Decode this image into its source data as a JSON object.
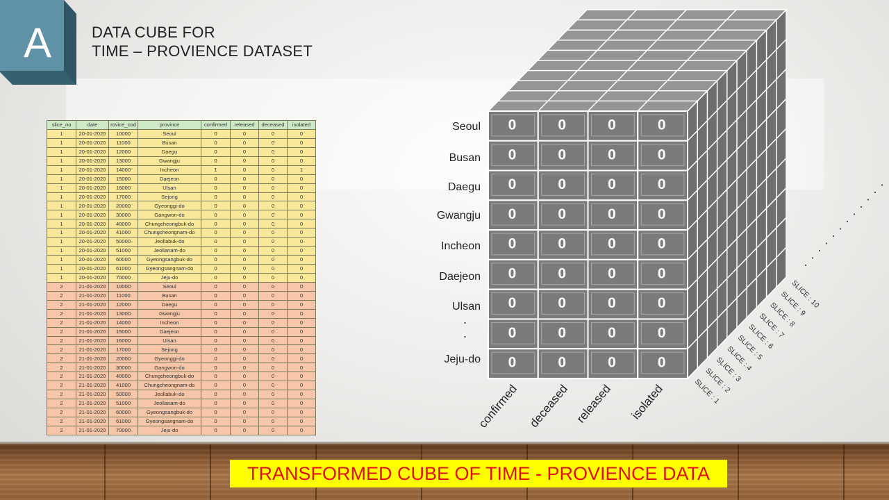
{
  "badge": {
    "letter": "A"
  },
  "title": {
    "line1": "DATA CUBE FOR",
    "line2": "TIME – PROVIENCE DATASET"
  },
  "banner": "TRANSFORMED  CUBE OF TIME - PROVIENCE DATA",
  "table": {
    "headers": [
      "slice_no",
      "date",
      "rovice_cod",
      "province",
      "confirmed",
      "released",
      "deceased",
      "isolated"
    ],
    "rows": [
      [
        "1",
        "20-01-2020",
        "10000",
        "Seoul",
        "0",
        "0",
        "0",
        "0"
      ],
      [
        "1",
        "20-01-2020",
        "11000",
        "Busan",
        "0",
        "0",
        "0",
        "0"
      ],
      [
        "1",
        "20-01-2020",
        "12000",
        "Daegu",
        "0",
        "0",
        "0",
        "0"
      ],
      [
        "1",
        "20-01-2020",
        "13000",
        "Gwangju",
        "0",
        "0",
        "0",
        "0"
      ],
      [
        "1",
        "20-01-2020",
        "14000",
        "Incheon",
        "1",
        "0",
        "0",
        "1"
      ],
      [
        "1",
        "20-01-2020",
        "15000",
        "Daejeon",
        "0",
        "0",
        "0",
        "0"
      ],
      [
        "1",
        "20-01-2020",
        "16000",
        "Ulsan",
        "0",
        "0",
        "0",
        "0"
      ],
      [
        "1",
        "20-01-2020",
        "17000",
        "Sejong",
        "0",
        "0",
        "0",
        "0"
      ],
      [
        "1",
        "20-01-2020",
        "20000",
        "Gyeonggi-do",
        "0",
        "0",
        "0",
        "0"
      ],
      [
        "1",
        "20-01-2020",
        "30000",
        "Gangwon-do",
        "0",
        "0",
        "0",
        "0"
      ],
      [
        "1",
        "20-01-2020",
        "40000",
        "Chungcheongbuk-do",
        "0",
        "0",
        "0",
        "0"
      ],
      [
        "1",
        "20-01-2020",
        "41000",
        "Chungcheongnam-do",
        "0",
        "0",
        "0",
        "0"
      ],
      [
        "1",
        "20-01-2020",
        "50000",
        "Jeollabuk-do",
        "0",
        "0",
        "0",
        "0"
      ],
      [
        "1",
        "20-01-2020",
        "51000",
        "Jeollanam-do",
        "0",
        "0",
        "0",
        "0"
      ],
      [
        "1",
        "20-01-2020",
        "60000",
        "Gyeongsangbuk-do",
        "0",
        "0",
        "0",
        "0"
      ],
      [
        "1",
        "20-01-2020",
        "61000",
        "Gyeongsangnam-do",
        "0",
        "0",
        "0",
        "0"
      ],
      [
        "1",
        "20-01-2020",
        "70000",
        "Jeju-do",
        "0",
        "0",
        "0",
        "0"
      ],
      [
        "2",
        "21-01-2020",
        "10000",
        "Seoul",
        "0",
        "0",
        "0",
        "0"
      ],
      [
        "2",
        "21-01-2020",
        "11000",
        "Busan",
        "0",
        "0",
        "0",
        "0"
      ],
      [
        "2",
        "21-01-2020",
        "12000",
        "Daegu",
        "0",
        "0",
        "0",
        "0"
      ],
      [
        "2",
        "21-01-2020",
        "13000",
        "Gwangju",
        "0",
        "0",
        "0",
        "0"
      ],
      [
        "2",
        "21-01-2020",
        "14000",
        "Incheon",
        "0",
        "0",
        "0",
        "0"
      ],
      [
        "2",
        "21-01-2020",
        "15000",
        "Daejeon",
        "0",
        "0",
        "0",
        "0"
      ],
      [
        "2",
        "21-01-2020",
        "16000",
        "Ulsan",
        "0",
        "0",
        "0",
        "0"
      ],
      [
        "2",
        "21-01-2020",
        "17000",
        "Sejong",
        "0",
        "0",
        "0",
        "0"
      ],
      [
        "2",
        "21-01-2020",
        "20000",
        "Gyeonggi-do",
        "0",
        "0",
        "0",
        "0"
      ],
      [
        "2",
        "21-01-2020",
        "30000",
        "Gangwon-do",
        "0",
        "0",
        "0",
        "0"
      ],
      [
        "2",
        "21-01-2020",
        "40000",
        "Chungcheongbuk-do",
        "0",
        "0",
        "0",
        "0"
      ],
      [
        "2",
        "21-01-2020",
        "41000",
        "Chungcheongnam-do",
        "0",
        "0",
        "0",
        "0"
      ],
      [
        "2",
        "21-01-2020",
        "50000",
        "Jeollabuk-do",
        "0",
        "0",
        "0",
        "0"
      ],
      [
        "2",
        "21-01-2020",
        "51000",
        "Jeollanam-do",
        "0",
        "0",
        "0",
        "0"
      ],
      [
        "2",
        "21-01-2020",
        "60000",
        "Gyeongsangbuk-do",
        "0",
        "0",
        "0",
        "0"
      ],
      [
        "2",
        "21-01-2020",
        "61000",
        "Gyeongsangnam-do",
        "0",
        "0",
        "0",
        "0"
      ],
      [
        "2",
        "21-01-2020",
        "70000",
        "Jeju-do",
        "0",
        "0",
        "0",
        "0"
      ]
    ]
  },
  "cube": {
    "row_labels": [
      "Seoul",
      "Busan",
      "Daegu",
      "Gwangju",
      "Incheon",
      "Daejeon",
      "Ulsan",
      ".",
      ".",
      "Jeju-do"
    ],
    "column_labels": [
      "confirmed",
      "deceased",
      "released",
      "isolated"
    ],
    "cell_value": "0",
    "slice_labels": [
      "SLICE : 1",
      "SLICE : 2",
      "SLICE : 3",
      "SLICE : 4",
      "SLICE : 5",
      "SLICE : 6",
      "SLICE : 7",
      "SLICE : 8",
      "SLICE : 9",
      "SLICE : 10"
    ],
    "colors": {
      "face": "#7b7b7b",
      "grid_line": "#ffffff",
      "side": "#6e6e6e",
      "top": "#959595"
    }
  }
}
